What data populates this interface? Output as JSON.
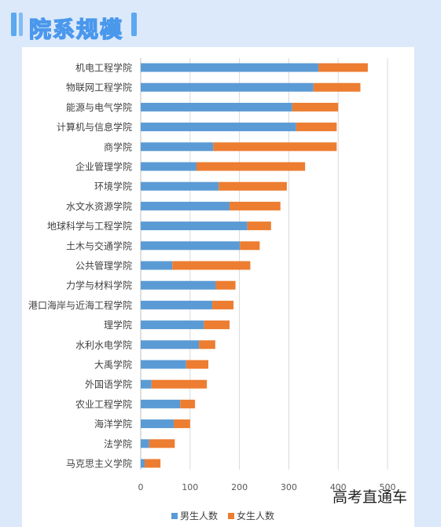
{
  "header": {
    "title": "院系规模"
  },
  "watermark": "高考直通车",
  "chart_data": {
    "type": "bar",
    "orientation": "horizontal",
    "stacked": true,
    "categories": [
      "机电工程学院",
      "物联网工程学院",
      "能源与电气学院",
      "计算机与信息学院",
      "商学院",
      "企业管理学院",
      "环境学院",
      "水文水资源学院",
      "地球科学与工程学院",
      "土木与交通学院",
      "公共管理学院",
      "力学与材料学院",
      "港口海岸与近海工程学院",
      "理学院",
      "水利水电学院",
      "大禹学院",
      "外国语学院",
      "农业工程学院",
      "海洋学院",
      "法学院",
      "马克思主义学院"
    ],
    "series": [
      {
        "name": "男生人数",
        "color": "#5b9bd5",
        "values": [
          360,
          350,
          307,
          315,
          147,
          113,
          158,
          180,
          216,
          201,
          64,
          152,
          145,
          128,
          118,
          92,
          22,
          80,
          67,
          17,
          8
        ]
      },
      {
        "name": "女生人数",
        "color": "#ed7d31",
        "values": [
          100,
          95,
          93,
          82,
          250,
          220,
          138,
          103,
          48,
          40,
          158,
          40,
          43,
          52,
          33,
          45,
          112,
          30,
          33,
          52,
          32
        ]
      }
    ],
    "xlim": [
      0,
      500
    ],
    "xticks": [
      "0",
      "100",
      "200",
      "300",
      "400",
      "500"
    ],
    "grid": true,
    "legend": "bottom"
  }
}
